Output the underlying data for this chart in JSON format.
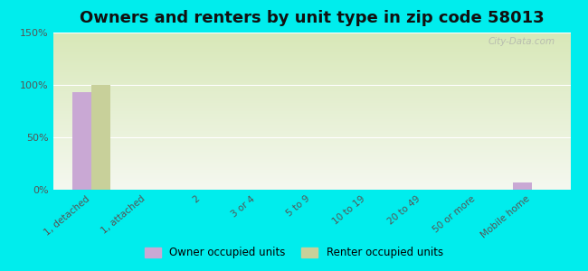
{
  "title": "Owners and renters by unit type in zip code 58013",
  "categories": [
    "1, detached",
    "1, attached",
    "2",
    "3 or 4",
    "5 to 9",
    "10 to 19",
    "20 to 49",
    "50 or more",
    "Mobile home"
  ],
  "owner_values": [
    93,
    0,
    0,
    0,
    0,
    0,
    0,
    0,
    7
  ],
  "renter_values": [
    100,
    0,
    0,
    0,
    0,
    0,
    0,
    0,
    0
  ],
  "owner_color": "#c9a8d4",
  "renter_color": "#c8d09a",
  "background_color": "#00eded",
  "plot_bg_color_top": "#d8e8b8",
  "plot_bg_color_bottom": "#f5f8f0",
  "ylim": [
    0,
    150
  ],
  "yticks": [
    0,
    50,
    100,
    150
  ],
  "ytick_labels": [
    "0%",
    "50%",
    "100%",
    "150%"
  ],
  "bar_width": 0.35,
  "legend_labels": [
    "Owner occupied units",
    "Renter occupied units"
  ],
  "watermark": "City-Data.com",
  "title_fontsize": 13
}
